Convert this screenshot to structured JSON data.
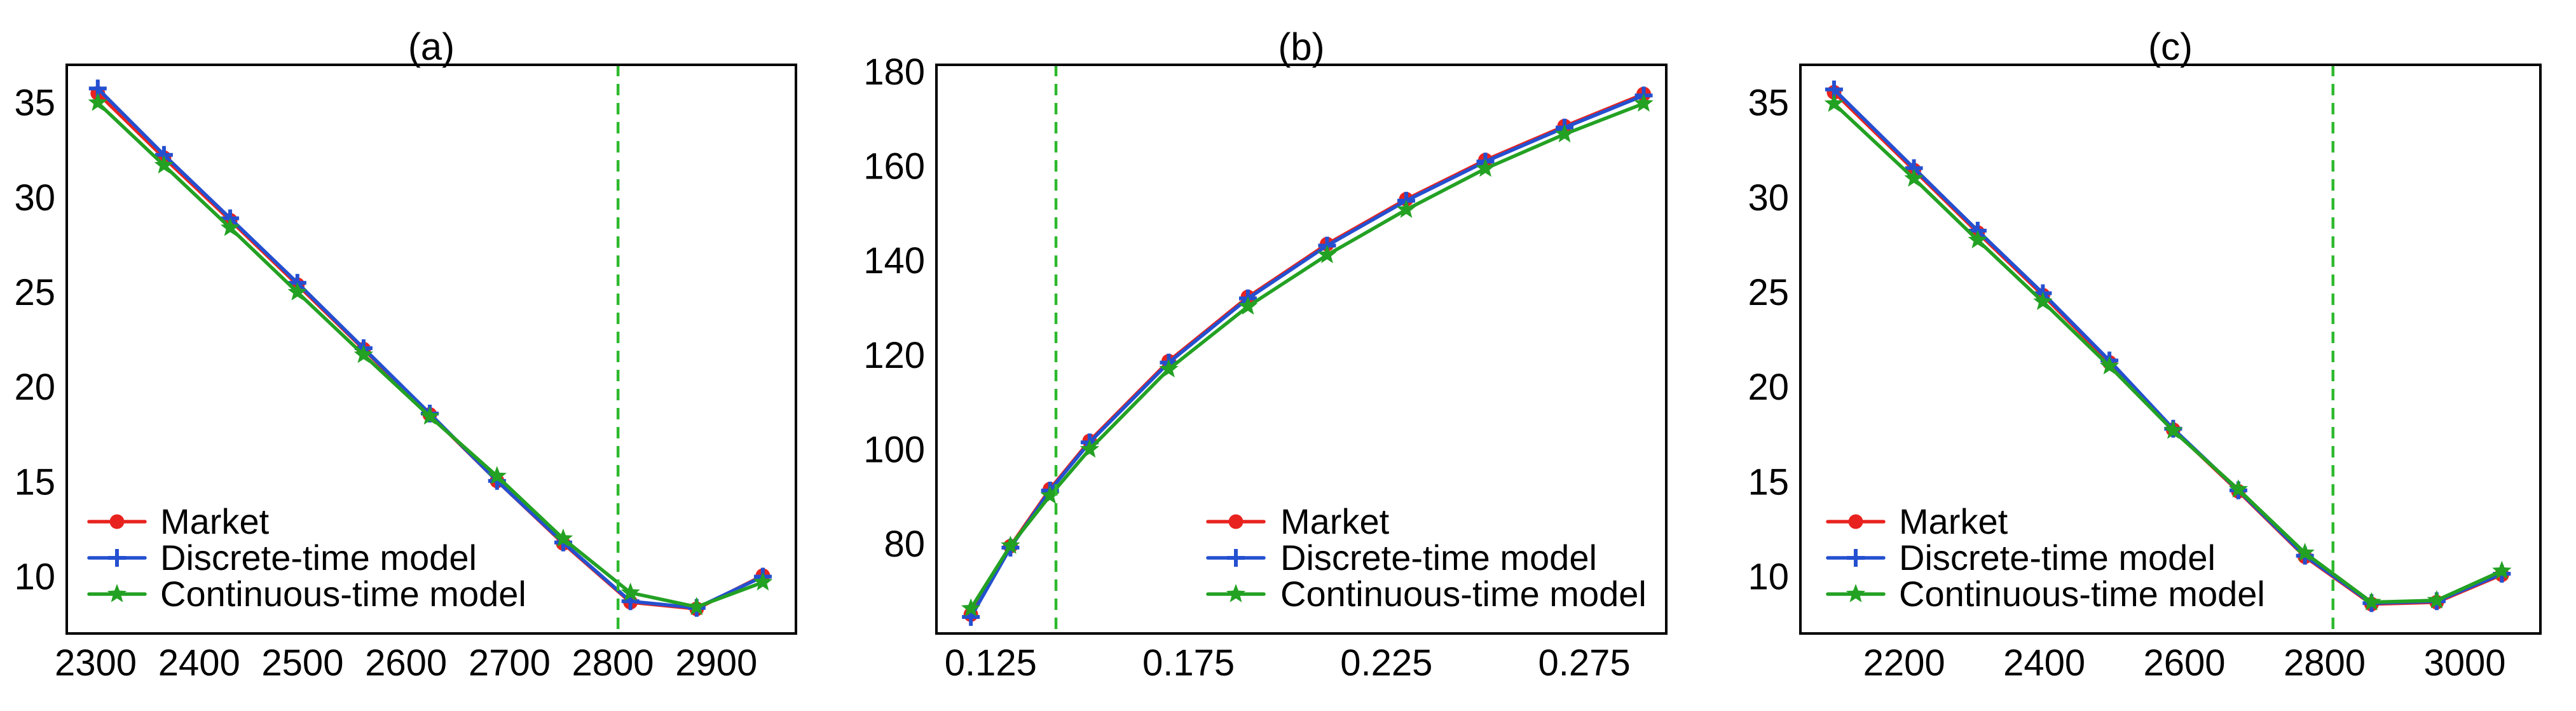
{
  "figure": {
    "background": "#ffffff",
    "axis_color": "#000000"
  },
  "chart_data": {
    "type": "line",
    "description": "Three-panel option price comparison: Market vs Discrete-time model vs Continuous-time model",
    "panels": [
      {
        "title": "(a)",
        "xlim": [
          2272,
          2977
        ],
        "ylim": [
          7.0,
          37.0
        ],
        "xtick_values": [
          2300,
          2400,
          2500,
          2600,
          2700,
          2800,
          2900
        ],
        "xtick_labels": [
          "2300",
          "2400",
          "2500",
          "2600",
          "2700",
          "2800",
          "2900"
        ],
        "ytick_values": [
          10,
          15,
          20,
          25,
          30,
          35
        ],
        "ytick_labels": [
          "10",
          "15",
          "20",
          "25",
          "30",
          "35"
        ],
        "vline": {
          "x": 2805,
          "color": "#2db92d",
          "style": "dashed"
        },
        "x": [
          2302,
          2366,
          2430,
          2495,
          2559,
          2623,
          2688,
          2752,
          2817,
          2881,
          2945
        ],
        "series": [
          {
            "name": "Market",
            "color": "#e8231f",
            "marker": "circle",
            "values": [
              35.5,
              32.1,
              28.8,
              25.4,
              22.0,
              18.55,
              15.05,
              11.75,
              8.65,
              8.3,
              10.05
            ]
          },
          {
            "name": "Discrete-time model",
            "color": "#2450d0",
            "marker": "plus",
            "values": [
              35.75,
              32.25,
              28.9,
              25.5,
              22.05,
              18.6,
              15.05,
              11.8,
              8.7,
              8.35,
              10.0
            ]
          },
          {
            "name": "Continuous-time model",
            "color": "#23a123",
            "marker": "star",
            "values": [
              35.0,
              31.7,
              28.4,
              25.0,
              21.7,
              18.45,
              15.3,
              12.0,
              9.15,
              8.4,
              9.7
            ]
          }
        ],
        "legend": {
          "position": "lower-left"
        }
      },
      {
        "title": "(b)",
        "xlim": [
          0.1113,
          0.2957
        ],
        "ylim": [
          61,
          181.5
        ],
        "xtick_values": [
          0.125,
          0.175,
          0.225,
          0.275
        ],
        "xtick_labels": [
          "0.125",
          "0.175",
          "0.225",
          "0.275"
        ],
        "ytick_values": [
          80,
          100,
          120,
          140,
          160,
          180
        ],
        "ytick_labels": [
          "80",
          "100",
          "120",
          "140",
          "160",
          "180"
        ],
        "vline": {
          "x": 0.1415,
          "color": "#2db92d",
          "style": "dashed"
        },
        "x": [
          0.12,
          0.13,
          0.14,
          0.15,
          0.17,
          0.19,
          0.21,
          0.23,
          0.25,
          0.27,
          0.29
        ],
        "series": [
          {
            "name": "Market",
            "color": "#e8231f",
            "marker": "circle",
            "values": [
              65.0,
              79.5,
              91.6,
              101.8,
              118.7,
              132.3,
              143.5,
              153.0,
              161.3,
              168.5,
              175.3
            ]
          },
          {
            "name": "Discrete-time model",
            "color": "#2450d0",
            "marker": "plus",
            "values": [
              64.5,
              79.2,
              91.3,
              101.5,
              118.4,
              132.0,
              143.2,
              152.7,
              161.0,
              168.2,
              175.0
            ]
          },
          {
            "name": "Continuous-time model",
            "color": "#23a123",
            "marker": "star",
            "values": [
              66.3,
              79.6,
              90.2,
              100.0,
              117.0,
              130.3,
              141.2,
              150.8,
              159.5,
              166.8,
              173.3
            ]
          }
        ],
        "legend": {
          "position": "lower-right"
        }
      },
      {
        "title": "(c)",
        "xlim": [
          2052,
          3108
        ],
        "ylim": [
          7.0,
          37.0
        ],
        "xtick_values": [
          2200,
          2400,
          2600,
          2800,
          3000
        ],
        "xtick_labels": [
          "2200",
          "2400",
          "2600",
          "2800",
          "3000"
        ],
        "ytick_values": [
          10,
          15,
          20,
          25,
          30,
          35
        ],
        "ytick_labels": [
          "10",
          "15",
          "20",
          "25",
          "30",
          "35"
        ],
        "vline": {
          "x": 2812,
          "color": "#2db92d",
          "style": "dashed"
        },
        "x": [
          2100,
          2214,
          2305,
          2398,
          2493,
          2584,
          2677,
          2772,
          2867,
          2960,
          3053
        ],
        "series": [
          {
            "name": "Market",
            "color": "#e8231f",
            "marker": "circle",
            "values": [
              35.55,
              31.45,
              28.15,
              24.85,
              21.3,
              17.75,
              14.5,
              11.05,
              8.55,
              8.65,
              10.1
            ]
          },
          {
            "name": "Discrete-time model",
            "color": "#2450d0",
            "marker": "plus",
            "values": [
              35.7,
              31.55,
              28.25,
              24.95,
              21.4,
              17.8,
              14.55,
              11.1,
              8.6,
              8.7,
              10.15
            ]
          },
          {
            "name": "Continuous-time model",
            "color": "#23a123",
            "marker": "star",
            "values": [
              34.95,
              31.0,
              27.75,
              24.5,
              21.1,
              17.7,
              14.6,
              11.25,
              8.65,
              8.75,
              10.3
            ]
          }
        ],
        "legend": {
          "position": "lower-left"
        }
      }
    ]
  }
}
